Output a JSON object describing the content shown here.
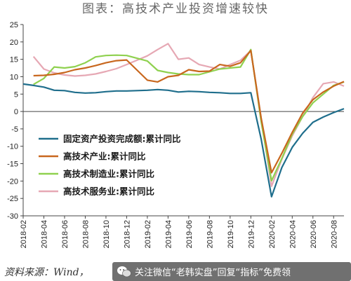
{
  "title": "图表：高技术产业投资增速较快",
  "source": "资料来源：Wind，",
  "watermark": "关注微信“老韩实盘”回复“指标”免费领",
  "chart_data": {
    "type": "line",
    "title": "图表：高技术产业投资增速较快",
    "xlabel": "",
    "ylabel": "",
    "ylim": [
      -30,
      25
    ],
    "yticks": [
      25,
      20,
      15,
      10,
      5,
      0,
      -5,
      -10,
      -15,
      -20,
      -25,
      -30
    ],
    "x_start": "2018-02",
    "x_end": "2020-09",
    "xticks": [
      "2018-02",
      "2018-04",
      "2018-06",
      "2018-08",
      "2018-10",
      "2018-12",
      "2019-02",
      "2019-04",
      "2019-06",
      "2019-08",
      "2019-10",
      "2019-12",
      "2020-02",
      "2020-04",
      "2020-06",
      "2020-08"
    ],
    "grid": false,
    "legend_position": "center-left",
    "series": [
      {
        "name": "固定资产投资完成额:累计同比",
        "color": "#1f6e8c",
        "points": [
          [
            "2018-02",
            7.9
          ],
          [
            "2018-03",
            7.5
          ],
          [
            "2018-04",
            7.0
          ],
          [
            "2018-05",
            6.1
          ],
          [
            "2018-06",
            6.0
          ],
          [
            "2018-07",
            5.5
          ],
          [
            "2018-08",
            5.3
          ],
          [
            "2018-09",
            5.4
          ],
          [
            "2018-10",
            5.7
          ],
          [
            "2018-11",
            5.9
          ],
          [
            "2018-12",
            5.9
          ],
          [
            "2019-02",
            6.1
          ],
          [
            "2019-03",
            6.3
          ],
          [
            "2019-04",
            6.1
          ],
          [
            "2019-05",
            5.6
          ],
          [
            "2019-06",
            5.8
          ],
          [
            "2019-07",
            5.7
          ],
          [
            "2019-08",
            5.5
          ],
          [
            "2019-09",
            5.4
          ],
          [
            "2019-10",
            5.2
          ],
          [
            "2019-11",
            5.2
          ],
          [
            "2019-12",
            5.4
          ],
          [
            "2020-01",
            -8
          ],
          [
            "2020-02",
            -24.5
          ],
          [
            "2020-03",
            -16.1
          ],
          [
            "2020-04",
            -10.3
          ],
          [
            "2020-05",
            -6.3
          ],
          [
            "2020-06",
            -3.1
          ],
          [
            "2020-07",
            -1.6
          ],
          [
            "2020-08",
            -0.3
          ],
          [
            "2020-09",
            0.8
          ]
        ]
      },
      {
        "name": "高技术产业:累计同比",
        "color": "#c8671e",
        "points": [
          [
            "2018-03",
            10.3
          ],
          [
            "2018-04",
            10.4
          ],
          [
            "2018-05",
            10.7
          ],
          [
            "2018-06",
            11.2
          ],
          [
            "2018-07",
            12.0
          ],
          [
            "2018-08",
            12.5
          ],
          [
            "2018-09",
            13.2
          ],
          [
            "2018-10",
            14.0
          ],
          [
            "2018-11",
            14.6
          ],
          [
            "2018-12",
            14.8
          ],
          [
            "2019-02",
            9.0
          ],
          [
            "2019-03",
            8.5
          ],
          [
            "2019-04",
            10.0
          ],
          [
            "2019-05",
            10.4
          ],
          [
            "2019-06",
            12.0
          ],
          [
            "2019-07",
            11.5
          ],
          [
            "2019-08",
            11.6
          ],
          [
            "2019-09",
            13.5
          ],
          [
            "2019-10",
            13.0
          ],
          [
            "2019-11",
            14.0
          ],
          [
            "2019-12",
            17.5
          ],
          [
            "2020-01",
            -2
          ],
          [
            "2020-02",
            -17.6
          ],
          [
            "2020-03",
            -12.0
          ],
          [
            "2020-04",
            -6.0
          ],
          [
            "2020-05",
            -0.5
          ],
          [
            "2020-06",
            3.4
          ],
          [
            "2020-07",
            5.6
          ],
          [
            "2020-08",
            7.3
          ],
          [
            "2020-09",
            8.6
          ]
        ]
      },
      {
        "name": "高技术制造业:累计同比",
        "color": "#8fd14f",
        "points": [
          [
            "2018-03",
            7.8
          ],
          [
            "2018-04",
            9.5
          ],
          [
            "2018-05",
            12.8
          ],
          [
            "2018-06",
            12.5
          ],
          [
            "2018-07",
            12.9
          ],
          [
            "2018-08",
            14.0
          ],
          [
            "2018-09",
            15.7
          ],
          [
            "2018-10",
            16.1
          ],
          [
            "2018-11",
            16.2
          ],
          [
            "2018-12",
            16.1
          ],
          [
            "2019-02",
            14.5
          ],
          [
            "2019-03",
            11.8
          ],
          [
            "2019-04",
            11.2
          ],
          [
            "2019-05",
            10.8
          ],
          [
            "2019-06",
            10.6
          ],
          [
            "2019-07",
            10.6
          ],
          [
            "2019-08",
            11.4
          ],
          [
            "2019-09",
            12.2
          ],
          [
            "2019-10",
            12.5
          ],
          [
            "2019-11",
            12.8
          ],
          [
            "2019-12",
            17.8
          ],
          [
            "2020-01",
            -3
          ],
          [
            "2020-02",
            -19.9
          ],
          [
            "2020-03",
            -13.5
          ],
          [
            "2020-04",
            -6.5
          ],
          [
            "2020-05",
            -1.5
          ],
          [
            "2020-06",
            2.5
          ],
          [
            "2020-07",
            5.0
          ],
          [
            "2020-08",
            7.5
          ],
          [
            "2020-09",
            8.5
          ]
        ]
      },
      {
        "name": "高技术服务业:累计同比",
        "color": "#e6a8b4",
        "points": [
          [
            "2018-03",
            15.8
          ],
          [
            "2018-04",
            12.2
          ],
          [
            "2018-05",
            11.1
          ],
          [
            "2018-06",
            10.5
          ],
          [
            "2018-07",
            10.2
          ],
          [
            "2018-08",
            10.4
          ],
          [
            "2018-09",
            10.8
          ],
          [
            "2018-10",
            11.5
          ],
          [
            "2018-11",
            12.3
          ],
          [
            "2018-12",
            13.5
          ],
          [
            "2019-02",
            16.0
          ],
          [
            "2019-03",
            17.8
          ],
          [
            "2019-04",
            19.5
          ],
          [
            "2019-05",
            15.0
          ],
          [
            "2019-06",
            15.4
          ],
          [
            "2019-07",
            13.5
          ],
          [
            "2019-08",
            12.8
          ],
          [
            "2019-09",
            12.2
          ],
          [
            "2019-10",
            13.5
          ],
          [
            "2019-11",
            14.7
          ],
          [
            "2019-12",
            17.5
          ],
          [
            "2020-01",
            -2
          ],
          [
            "2020-02",
            -21.5
          ],
          [
            "2020-03",
            -13.7
          ],
          [
            "2020-04",
            -7.0
          ],
          [
            "2020-05",
            -1.5
          ],
          [
            "2020-06",
            4.0
          ],
          [
            "2020-07",
            8.0
          ],
          [
            "2020-08",
            8.5
          ],
          [
            "2020-09",
            7.3
          ]
        ]
      }
    ]
  }
}
